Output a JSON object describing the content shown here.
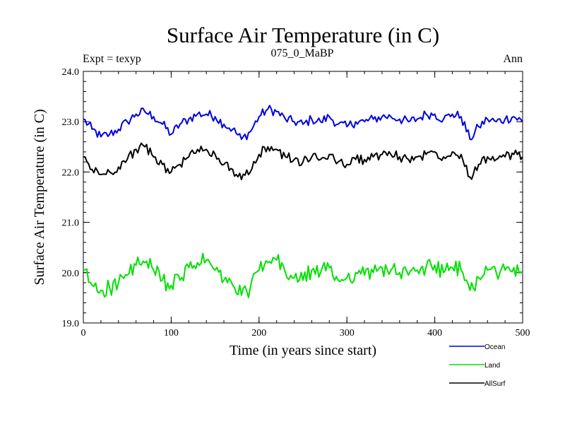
{
  "chart_data": {
    "type": "line",
    "title": "Surface Air Temperature (in C)",
    "subtitle_left": "Expt = texyp",
    "subtitle_center": "075_0_MaBP",
    "subtitle_right": "Ann",
    "xlabel": "Time (in years since start)",
    "ylabel": "Surface Air Temperature (in C)",
    "xlim": [
      0,
      500
    ],
    "ylim": [
      19.0,
      24.0
    ],
    "x_ticks": [
      0,
      100,
      200,
      300,
      400,
      500
    ],
    "x_tick_labels": [
      "0",
      "100",
      "200",
      "300",
      "400",
      "500"
    ],
    "y_ticks": [
      19.0,
      20.0,
      21.0,
      22.0,
      23.0,
      24.0
    ],
    "y_tick_labels": [
      "19.0",
      "20.0",
      "21.0",
      "22.0",
      "23.0",
      "24.0"
    ],
    "grid": false,
    "legend_position": "bottom-right",
    "x": [
      0,
      10,
      20,
      30,
      40,
      50,
      60,
      70,
      80,
      90,
      100,
      110,
      120,
      130,
      140,
      150,
      160,
      170,
      180,
      190,
      200,
      210,
      220,
      230,
      240,
      250,
      260,
      270,
      280,
      290,
      300,
      310,
      320,
      330,
      340,
      350,
      360,
      370,
      380,
      390,
      400,
      410,
      420,
      430,
      440,
      450,
      460,
      470,
      480,
      490,
      500
    ],
    "series": [
      {
        "name": "Ocean",
        "color": "#0000e0",
        "values": [
          23.05,
          22.85,
          22.7,
          22.75,
          22.85,
          23.0,
          23.15,
          23.2,
          23.1,
          22.95,
          22.75,
          22.95,
          23.05,
          23.15,
          23.15,
          23.1,
          22.95,
          22.85,
          22.65,
          22.8,
          23.1,
          23.25,
          23.2,
          23.05,
          23.0,
          22.95,
          23.05,
          23.0,
          23.1,
          22.95,
          22.9,
          23.0,
          23.0,
          23.05,
          23.1,
          23.1,
          23.05,
          23.0,
          23.05,
          23.15,
          23.15,
          23.05,
          23.15,
          23.1,
          22.65,
          22.9,
          23.05,
          23.0,
          23.05,
          23.1,
          23.0
        ]
      },
      {
        "name": "Land",
        "color": "#00e000",
        "values": [
          20.05,
          19.75,
          19.65,
          19.7,
          19.8,
          19.95,
          20.15,
          20.2,
          20.05,
          19.85,
          19.75,
          19.85,
          20.1,
          20.2,
          20.25,
          20.05,
          19.85,
          19.75,
          19.55,
          19.7,
          20.05,
          20.2,
          20.25,
          20.0,
          19.9,
          19.85,
          20.05,
          20.0,
          20.1,
          19.85,
          19.9,
          20.0,
          19.95,
          20.0,
          20.1,
          20.05,
          20.0,
          19.95,
          20.05,
          20.1,
          20.15,
          20.0,
          20.1,
          20.05,
          19.65,
          19.9,
          20.05,
          20.0,
          20.05,
          20.1,
          20.0
        ]
      },
      {
        "name": "AllSurf",
        "color": "#000000",
        "values": [
          22.3,
          22.05,
          21.95,
          22.0,
          22.1,
          22.25,
          22.45,
          22.5,
          22.3,
          22.15,
          22.0,
          22.15,
          22.3,
          22.45,
          22.45,
          22.35,
          22.15,
          22.05,
          21.85,
          22.0,
          22.35,
          22.5,
          22.45,
          22.3,
          22.25,
          22.2,
          22.3,
          22.25,
          22.35,
          22.2,
          22.15,
          22.25,
          22.25,
          22.3,
          22.35,
          22.35,
          22.3,
          22.25,
          22.3,
          22.35,
          22.4,
          22.3,
          22.4,
          22.35,
          21.9,
          22.15,
          22.3,
          22.25,
          22.3,
          22.35,
          22.3
        ]
      }
    ]
  }
}
